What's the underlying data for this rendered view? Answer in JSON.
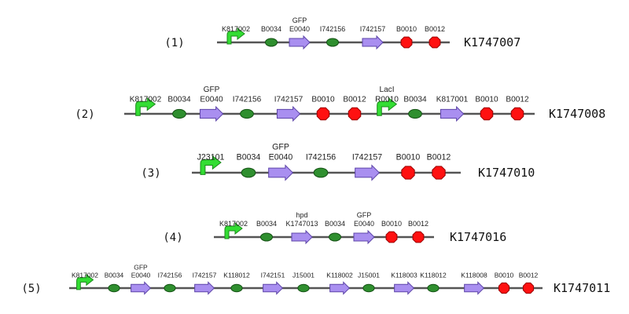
{
  "constructs": [
    {
      "number": "(1)",
      "id": "K1747007",
      "parts": [
        {
          "type": "promoter",
          "name": "K817002"
        },
        {
          "type": "rbs",
          "name": "B0034"
        },
        {
          "type": "cds",
          "name": "E0040",
          "tag": "GFP"
        },
        {
          "type": "rbs",
          "name": "I742156"
        },
        {
          "type": "cds",
          "name": "I742157"
        },
        {
          "type": "terminator",
          "name": "B0010"
        },
        {
          "type": "terminator",
          "name": "B0012"
        }
      ]
    },
    {
      "number": "(2)",
      "id": "K1747008",
      "parts": [
        {
          "type": "promoter",
          "name": "K817002"
        },
        {
          "type": "rbs",
          "name": "B0034"
        },
        {
          "type": "cds",
          "name": "E0040",
          "tag": "GFP"
        },
        {
          "type": "rbs",
          "name": "I742156"
        },
        {
          "type": "cds",
          "name": "I742157"
        },
        {
          "type": "terminator",
          "name": "B0010"
        },
        {
          "type": "terminator",
          "name": "B0012"
        },
        {
          "type": "promoter",
          "name": "R0010",
          "tag": "LacI"
        },
        {
          "type": "rbs",
          "name": "B0034"
        },
        {
          "type": "cds",
          "name": "K817001"
        },
        {
          "type": "terminator",
          "name": "B0010"
        },
        {
          "type": "terminator",
          "name": "B0012"
        }
      ]
    },
    {
      "number": "(3)",
      "id": "K1747010",
      "parts": [
        {
          "type": "promoter",
          "name": "J23101"
        },
        {
          "type": "rbs",
          "name": "B0034"
        },
        {
          "type": "cds",
          "name": "E0040",
          "tag": "GFP"
        },
        {
          "type": "rbs",
          "name": "I742156"
        },
        {
          "type": "cds",
          "name": "I742157"
        },
        {
          "type": "terminator",
          "name": "B0010"
        },
        {
          "type": "terminator",
          "name": "B0012"
        }
      ]
    },
    {
      "number": "(4)",
      "id": "K1747016",
      "parts": [
        {
          "type": "promoter",
          "name": "K817002"
        },
        {
          "type": "rbs",
          "name": "B0034"
        },
        {
          "type": "cds",
          "name": "K1747013",
          "tag": "hpd"
        },
        {
          "type": "rbs",
          "name": "B0034"
        },
        {
          "type": "cds",
          "name": "E0040",
          "tag": "GFP"
        },
        {
          "type": "terminator",
          "name": "B0010"
        },
        {
          "type": "terminator",
          "name": "B0012"
        }
      ]
    },
    {
      "number": "(5)",
      "id": "K1747011",
      "parts": [
        {
          "type": "promoter",
          "name": "K817002"
        },
        {
          "type": "rbs",
          "name": "B0034"
        },
        {
          "type": "cds",
          "name": "E0040",
          "tag": "GFP"
        },
        {
          "type": "rbs",
          "name": "I742156"
        },
        {
          "type": "cds",
          "name": "I742157"
        },
        {
          "type": "rbs",
          "name": "K118012"
        },
        {
          "type": "cds",
          "name": "I742151"
        },
        {
          "type": "rbs",
          "name": "J15001"
        },
        {
          "type": "cds",
          "name": "K118002"
        },
        {
          "type": "rbs",
          "name": "J15001"
        },
        {
          "type": "cds",
          "name": "K118003"
        },
        {
          "type": "rbs",
          "name": "K118012"
        },
        {
          "type": "cds",
          "name": "K118008"
        },
        {
          "type": "terminator",
          "name": "B0010"
        },
        {
          "type": "terminator",
          "name": "B0012"
        }
      ]
    }
  ],
  "colors": {
    "backbone": "#555555",
    "promoter": "#33dd33",
    "promoter_edge": "#1a8a1a",
    "rbs": "#2f8f2f",
    "rbs_edge": "#145214",
    "cds": "#a98ff0",
    "cds_edge": "#5d44a8",
    "terminator": "#ff1111",
    "terminator_edge": "#990000"
  }
}
